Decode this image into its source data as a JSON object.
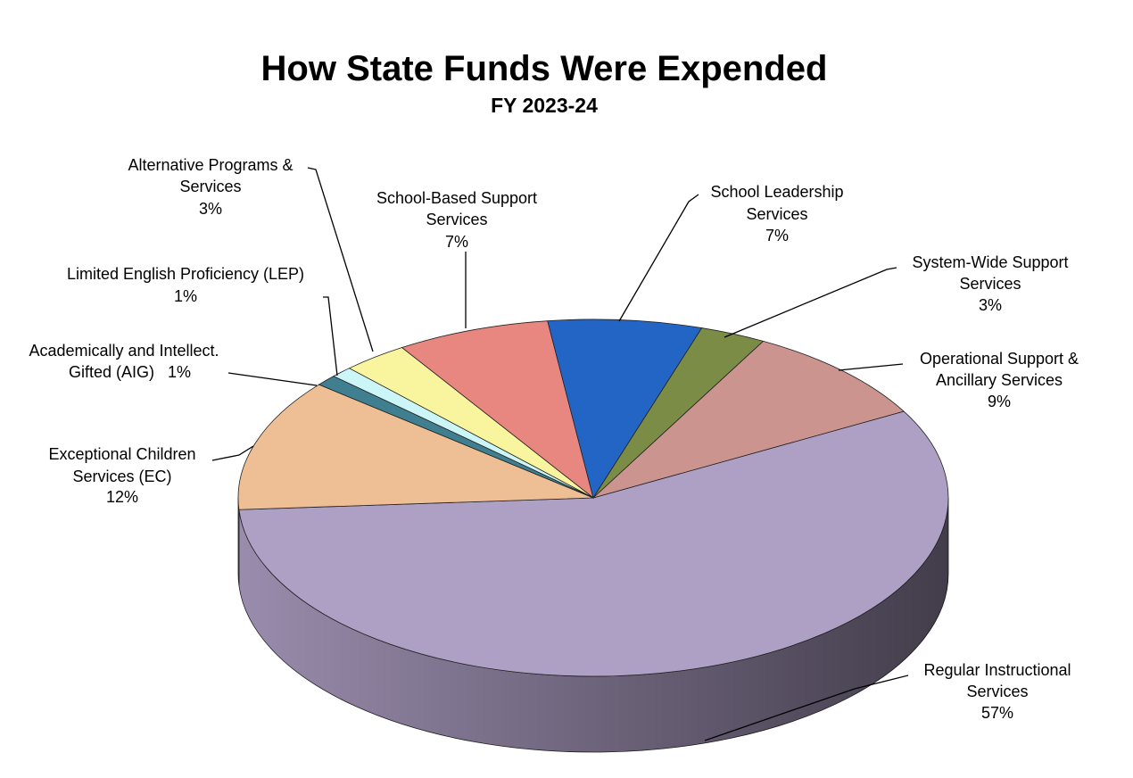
{
  "chart_data": {
    "type": "pie",
    "title": "How State Funds Were Expended",
    "subtitle": "FY 2023-24",
    "categories": [
      "Regular Instructional Services",
      "Exceptional Children Services (EC)",
      "Academically and Intellect. Gifted (AIG)",
      "Limited English Proficiency (LEP)",
      "Alternative Programs & Services",
      "School-Based Support Services",
      "School Leadership Services",
      "System-Wide Support Services",
      "Operational Support & Ancillary Services"
    ],
    "values": [
      57,
      12,
      1,
      1,
      3,
      7,
      7,
      3,
      9
    ],
    "value_labels": [
      "57%",
      "12%",
      "1%",
      "1%",
      "3%",
      "7%",
      "7%",
      "3%",
      "9%"
    ],
    "colors": [
      "#ae9fc4",
      "#eebe94",
      "#3f7f8f",
      "#ccf5f8",
      "#f8f59e",
      "#e88680",
      "#2365c4",
      "#7a8c45",
      "#cc948f"
    ]
  }
}
